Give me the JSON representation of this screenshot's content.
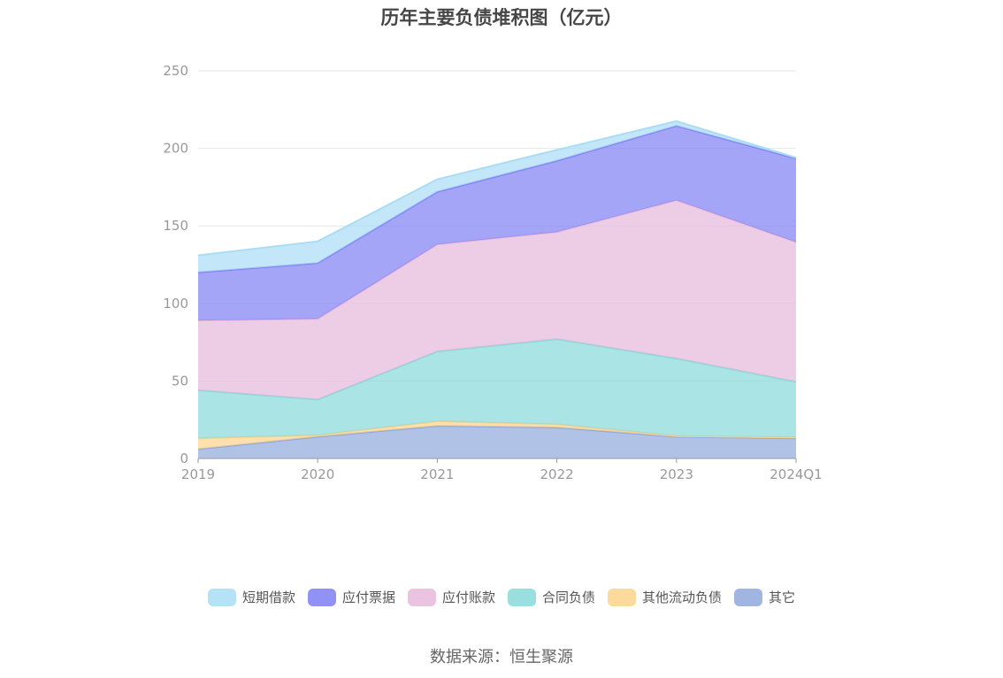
{
  "chart_data": {
    "type": "area",
    "stacked": true,
    "title": "历年主要负债堆积图（亿元）",
    "categories": [
      "2019",
      "2020",
      "2021",
      "2022",
      "2023",
      "2024Q1"
    ],
    "ylim": [
      0,
      250
    ],
    "yticks": [
      0,
      50,
      100,
      150,
      200,
      250
    ],
    "grid": true,
    "legend_position": "bottom",
    "series": [
      {
        "name": "其它",
        "color": "#8fa8dc",
        "values": [
          6,
          14,
          21,
          20,
          14,
          13
        ]
      },
      {
        "name": "其他流动负债",
        "color": "#fcd38b",
        "values": [
          7,
          1,
          3,
          2,
          0.5,
          0.5
        ]
      },
      {
        "name": "合同负债",
        "color": "#88d9d9",
        "values": [
          31,
          23,
          45,
          55,
          50,
          36
        ]
      },
      {
        "name": "应付账款",
        "color": "#e6b8dc",
        "values": [
          45,
          52,
          69,
          69,
          102,
          90
        ]
      },
      {
        "name": "应付票据",
        "color": "#7f7ff5",
        "values": [
          31,
          36,
          34,
          46,
          48,
          54
        ]
      },
      {
        "name": "短期借款",
        "color": "#a9ddf5",
        "values": [
          11,
          14,
          8,
          7,
          3,
          0.5
        ]
      }
    ]
  },
  "legend_order": [
    "短期借款",
    "应付票据",
    "应付账款",
    "合同负债",
    "其他流动负债",
    "其它"
  ],
  "source": "数据来源：恒生聚源"
}
